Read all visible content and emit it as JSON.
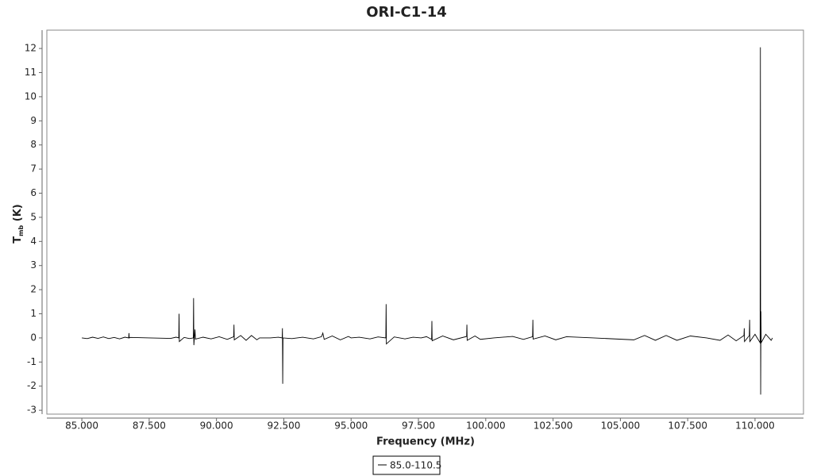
{
  "chart_data": {
    "type": "line",
    "title": "ORI-C1-14",
    "xlabel": "Frequency (MHz)",
    "ylabel": {
      "main": "T",
      "sub": "mb",
      "unit": " (K)"
    },
    "xlim": [
      83.7,
      111.8
    ],
    "ylim": [
      -3.16,
      12.76
    ],
    "xticks": [
      {
        "value": 85,
        "label": "85.000"
      },
      {
        "value": 87.5,
        "label": "87.500"
      },
      {
        "value": 90,
        "label": "90.000"
      },
      {
        "value": 92.5,
        "label": "92.500"
      },
      {
        "value": 95,
        "label": "95.000"
      },
      {
        "value": 97.5,
        "label": "97.500"
      },
      {
        "value": 100,
        "label": "100.000"
      },
      {
        "value": 102.5,
        "label": "102.500"
      },
      {
        "value": 105,
        "label": "105.000"
      },
      {
        "value": 107.5,
        "label": "107.500"
      },
      {
        "value": 110,
        "label": "110.000"
      }
    ],
    "yticks": [
      -3,
      -2,
      -1,
      0,
      1,
      2,
      3,
      4,
      5,
      6,
      7,
      8,
      9,
      10,
      11,
      12
    ],
    "grid": false,
    "legend": "bottom",
    "series": [
      {
        "name": "85.0-110.5",
        "color": "#000000",
        "x": [
          85.0,
          85.2,
          85.4,
          85.6,
          85.8,
          86.0,
          86.2,
          86.4,
          86.6,
          86.74,
          86.75,
          86.76,
          86.8,
          87.5,
          88.3,
          88.5,
          88.6,
          88.61,
          88.62,
          88.8,
          89.0,
          89.14,
          89.15,
          89.16,
          89.2,
          89.22,
          89.5,
          89.8,
          90.1,
          90.4,
          90.64,
          90.65,
          90.66,
          90.9,
          91.1,
          91.3,
          91.5,
          91.6,
          92.0,
          92.3,
          92.44,
          92.45,
          92.46,
          92.47,
          92.8,
          93.2,
          93.6,
          93.9,
          93.95,
          94.0,
          94.3,
          94.6,
          94.9,
          95.0,
          95.3,
          95.7,
          96.0,
          96.29,
          96.3,
          96.31,
          96.6,
          97.0,
          97.3,
          97.6,
          97.8,
          97.99,
          98.0,
          98.01,
          98.4,
          98.8,
          99.29,
          99.3,
          99.31,
          99.6,
          99.8,
          100.3,
          101.0,
          101.4,
          101.74,
          101.75,
          101.76,
          102.2,
          102.6,
          103.0,
          104.0,
          105.5,
          105.9,
          106.3,
          106.7,
          107.1,
          107.6,
          108.2,
          108.7,
          109.0,
          109.3,
          109.59,
          109.6,
          109.61,
          109.79,
          109.8,
          109.81,
          110.0,
          110.19,
          110.2,
          110.21,
          110.22,
          110.23,
          110.4,
          110.6,
          110.65
        ],
        "values": [
          0,
          -0.03,
          0.03,
          -0.02,
          0.04,
          -0.03,
          0.02,
          -0.04,
          0.03,
          0,
          0.2,
          0,
          0.02,
          0,
          -0.02,
          0.03,
          0,
          1.0,
          -0.15,
          0.02,
          -0.03,
          0,
          1.65,
          -0.3,
          0.35,
          -0.05,
          0.03,
          -0.04,
          0.05,
          -0.06,
          0.05,
          0.55,
          -0.08,
          0.1,
          -0.1,
          0.1,
          -0.08,
          0,
          0,
          0.03,
          0,
          0.4,
          -1.9,
          0,
          -0.03,
          0.03,
          -0.04,
          0.05,
          0.2,
          -0.06,
          0.08,
          -0.08,
          0.06,
          0,
          0.03,
          -0.04,
          0.04,
          0,
          1.4,
          -0.25,
          0.04,
          -0.04,
          0.03,
          0,
          0.05,
          -0.06,
          0.7,
          -0.12,
          0.08,
          -0.08,
          0.06,
          0.55,
          -0.1,
          0.08,
          -0.06,
          0,
          0.06,
          -0.06,
          0.05,
          0.75,
          -0.05,
          0.08,
          -0.08,
          0.05,
          0,
          -0.08,
          0.1,
          -0.1,
          0.1,
          -0.1,
          0.08,
          0,
          -0.1,
          0.12,
          -0.12,
          0.1,
          0.4,
          -0.15,
          0.1,
          0.75,
          -0.15,
          0.15,
          -0.2,
          12.05,
          -2.35,
          1.1,
          -0.2,
          0.15,
          -0.1,
          0
        ]
      }
    ]
  }
}
